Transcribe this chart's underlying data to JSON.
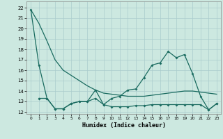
{
  "xlabel": "Humidex (Indice chaleur)",
  "xlim": [
    -0.5,
    23.5
  ],
  "ylim": [
    11.8,
    22.6
  ],
  "yticks": [
    12,
    13,
    14,
    15,
    16,
    17,
    18,
    19,
    20,
    21,
    22
  ],
  "xticks": [
    0,
    1,
    2,
    3,
    4,
    5,
    6,
    7,
    8,
    9,
    10,
    11,
    12,
    13,
    14,
    15,
    16,
    17,
    18,
    19,
    20,
    21,
    22,
    23
  ],
  "bg_color": "#cce8e0",
  "grid_color": "#aacccc",
  "line_color": "#1a6b60",
  "line1_x": [
    0,
    1,
    2,
    3,
    4,
    5,
    6,
    7,
    8,
    9,
    10,
    11,
    12,
    13,
    14,
    15,
    16,
    17,
    18,
    19,
    20,
    21,
    22,
    23
  ],
  "line1_y": [
    21.8,
    20.5,
    18.8,
    17.0,
    16.0,
    15.5,
    15.0,
    14.5,
    14.1,
    13.8,
    13.7,
    13.6,
    13.5,
    13.5,
    13.5,
    13.6,
    13.7,
    13.8,
    13.9,
    14.0,
    14.0,
    13.9,
    13.8,
    13.7
  ],
  "line2_x": [
    0,
    1,
    2,
    3,
    4,
    5,
    6,
    7,
    8,
    9,
    10,
    11,
    12,
    13,
    14,
    15,
    16,
    17,
    18,
    19,
    20,
    21,
    22,
    23
  ],
  "line2_y": [
    21.8,
    16.5,
    13.3,
    12.3,
    12.3,
    12.8,
    13.0,
    13.0,
    13.3,
    12.7,
    13.3,
    13.5,
    14.1,
    14.2,
    15.3,
    16.5,
    16.7,
    17.8,
    17.2,
    17.5,
    15.7,
    13.5,
    12.2,
    12.8
  ],
  "line3_x": [
    1,
    2,
    3,
    4,
    5,
    6,
    7,
    8,
    9,
    10,
    11,
    12,
    13,
    14,
    15,
    16,
    17,
    18,
    19,
    20,
    21,
    22,
    23
  ],
  "line3_y": [
    13.3,
    13.3,
    12.3,
    12.3,
    12.8,
    13.0,
    13.0,
    14.1,
    12.7,
    12.5,
    12.5,
    12.5,
    12.6,
    12.6,
    12.7,
    12.7,
    12.7,
    12.7,
    12.7,
    12.7,
    12.7,
    12.2,
    12.8
  ]
}
